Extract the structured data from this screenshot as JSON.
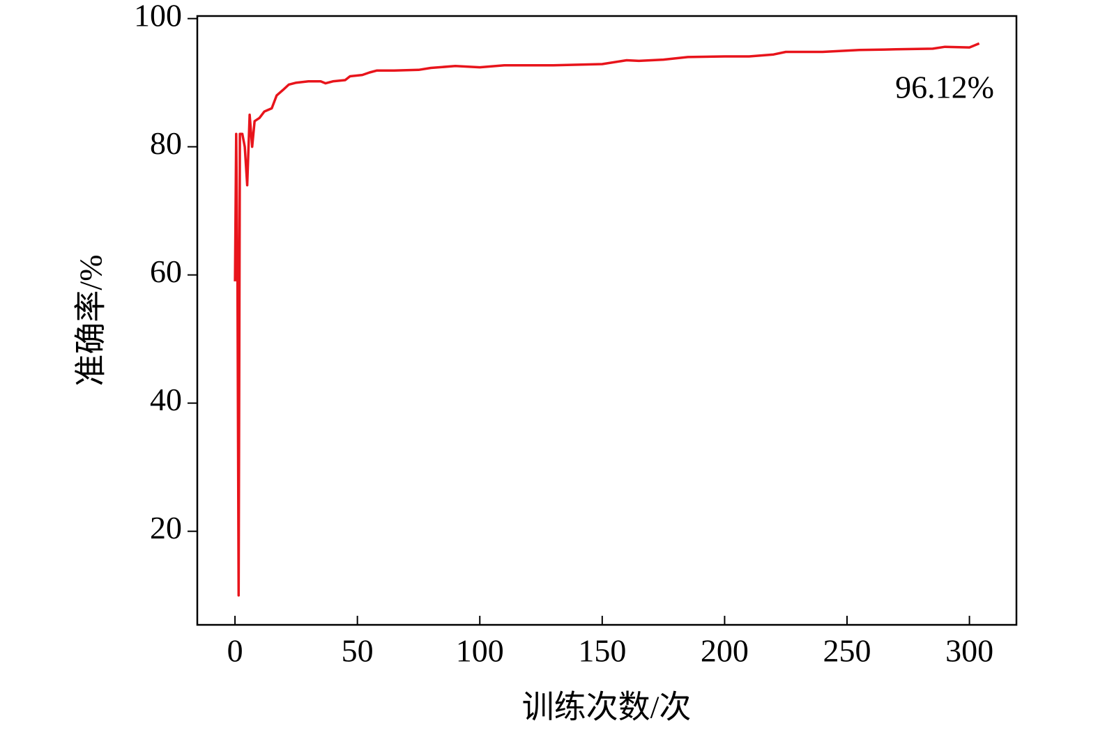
{
  "chart_data": {
    "type": "line",
    "x_label": "训练次数/次",
    "y_label": "准确率/%",
    "annotation": "96.12%",
    "xlim": [
      -15.4,
      319.2
    ],
    "xticks": [
      0,
      50,
      100,
      150,
      200,
      250,
      300
    ],
    "ylim": [
      5.4,
      100.4
    ],
    "yticks": [
      20,
      40,
      60,
      80,
      100
    ],
    "series": [
      {
        "color": "#e8141b",
        "x": [
          0,
          0.5,
          1,
          1.5,
          2,
          3,
          4,
          5,
          6,
          7,
          8,
          10,
          12,
          15,
          17,
          20,
          22,
          25,
          30,
          35,
          37,
          40,
          45,
          47,
          52,
          55,
          58,
          65,
          75,
          80,
          90,
          100,
          110,
          120,
          130,
          140,
          150,
          160,
          165,
          175,
          185,
          200,
          210,
          220,
          225,
          240,
          255,
          270,
          285,
          290,
          300,
          304
        ],
        "values": [
          59,
          82,
          60,
          10,
          82,
          82,
          80,
          74,
          85,
          80,
          84,
          84.5,
          85.5,
          86,
          88,
          89,
          89.7,
          90,
          90.2,
          90.2,
          89.9,
          90.2,
          90.4,
          91,
          91.2,
          91.6,
          91.9,
          91.9,
          92,
          92.3,
          92.6,
          92.4,
          92.7,
          92.7,
          92.7,
          92.8,
          92.9,
          93.5,
          93.4,
          93.6,
          94,
          94.1,
          94.1,
          94.4,
          94.8,
          94.8,
          95.1,
          95.2,
          95.3,
          95.6,
          95.5,
          96.12
        ]
      }
    ]
  }
}
